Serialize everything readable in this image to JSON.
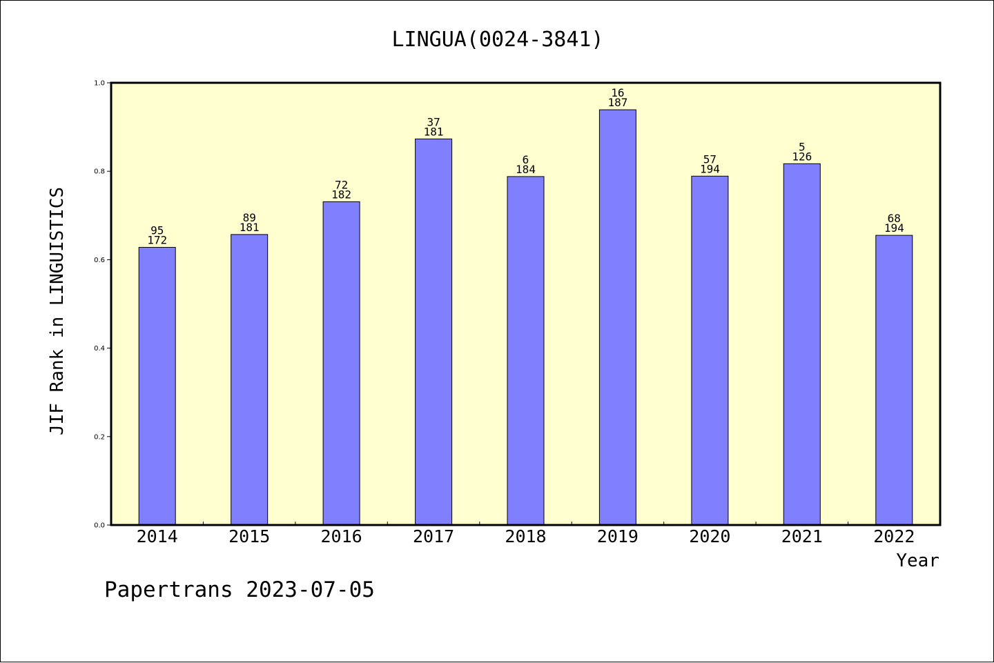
{
  "chart_data": {
    "type": "bar",
    "title": "LINGUA(0024-3841)",
    "xlabel": "Year",
    "ylabel": "JIF Rank in LINGUISTICS",
    "ylim": [
      0,
      1.0
    ],
    "yticks": [
      "0.0",
      "0.2",
      "0.4",
      "0.6",
      "0.8",
      "1.0"
    ],
    "categories": [
      "2014",
      "2015",
      "2016",
      "2017",
      "2018",
      "2019",
      "2020",
      "2021",
      "2022"
    ],
    "values": [
      0.628,
      0.657,
      0.731,
      0.873,
      0.788,
      0.939,
      0.789,
      0.817,
      0.655
    ],
    "rank": [
      "95",
      "89",
      "72",
      "37",
      "6",
      "16",
      "57",
      "5",
      "68"
    ],
    "total": [
      "172",
      "181",
      "182",
      "181",
      "184",
      "187",
      "194",
      "126",
      "194"
    ],
    "bar_color": "#8080ff",
    "plot_background": "#ffffd0",
    "grid": false,
    "footer": "Papertrans 2023-07-05"
  }
}
